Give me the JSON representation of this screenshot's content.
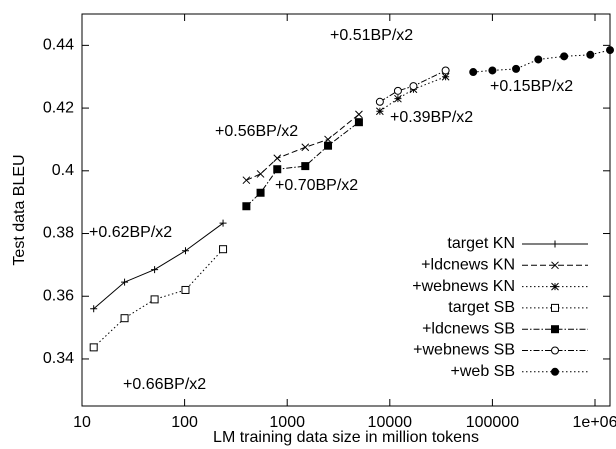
{
  "chart_data": {
    "type": "line",
    "xlabel": "LM training data size in million tokens",
    "ylabel": "Test data BLEU",
    "xscale": "log",
    "xlim": [
      10,
      1400000
    ],
    "ylim": [
      0.325,
      0.45
    ],
    "xticks": [
      10,
      100,
      1000,
      10000,
      100000,
      {
        "value": 1000000,
        "label": "1e+06"
      }
    ],
    "yticks": [
      0.34,
      0.36,
      0.38,
      0.4,
      0.42,
      0.44
    ],
    "legend": "lower right",
    "series": [
      {
        "name": "target KN",
        "color": "#000000",
        "dash": "solid",
        "marker": "plus",
        "x": [
          13,
          26,
          51,
          102,
          237
        ],
        "values": [
          0.356,
          0.3645,
          0.3685,
          0.3745,
          0.3833
        ]
      },
      {
        "name": "+ldcnews KN",
        "color": "#000000",
        "dash": "dashed",
        "marker": "cross",
        "x": [
          400,
          550,
          800,
          1500,
          2500,
          5000
        ],
        "values": [
          0.397,
          0.399,
          0.404,
          0.4075,
          0.41,
          0.418
        ]
      },
      {
        "name": "+webnews KN",
        "color": "#000000",
        "dash": "dotted",
        "marker": "star",
        "x": [
          8000,
          12000,
          17000,
          35000
        ],
        "values": [
          0.419,
          0.423,
          0.426,
          0.43
        ]
      },
      {
        "name": "target SB",
        "color": "#000000",
        "dash": "dotted",
        "marker": "open-square",
        "x": [
          13,
          26,
          51,
          102,
          237
        ],
        "values": [
          0.3437,
          0.353,
          0.359,
          0.362,
          0.375
        ]
      },
      {
        "name": "+ldcnews SB",
        "color": "#000000",
        "dash": "dashdot",
        "marker": "filled-square",
        "x": [
          400,
          550,
          800,
          1500,
          2500,
          5000
        ],
        "values": [
          0.3887,
          0.393,
          0.4005,
          0.4015,
          0.408,
          0.4155
        ]
      },
      {
        "name": "+webnews SB",
        "color": "#000000",
        "dash": "dashdot",
        "marker": "open-circle",
        "x": [
          8000,
          12000,
          17000,
          35000
        ],
        "values": [
          0.422,
          0.4255,
          0.427,
          0.432
        ]
      },
      {
        "name": "+web SB",
        "color": "#000000",
        "dash": "dotted",
        "marker": "filled-circle",
        "x": [
          65000,
          100000,
          170000,
          280000,
          500000,
          900000,
          1400000
        ],
        "values": [
          0.4315,
          0.432,
          0.4325,
          0.4355,
          0.4365,
          0.437,
          0.4385
        ]
      }
    ],
    "annotations": [
      "+0.62BP/x2",
      "+0.66BP/x2",
      "+0.56BP/x2",
      "+0.70BP/x2",
      "+0.51BP/x2",
      "+0.39BP/x2",
      "+0.15BP/x2"
    ]
  }
}
